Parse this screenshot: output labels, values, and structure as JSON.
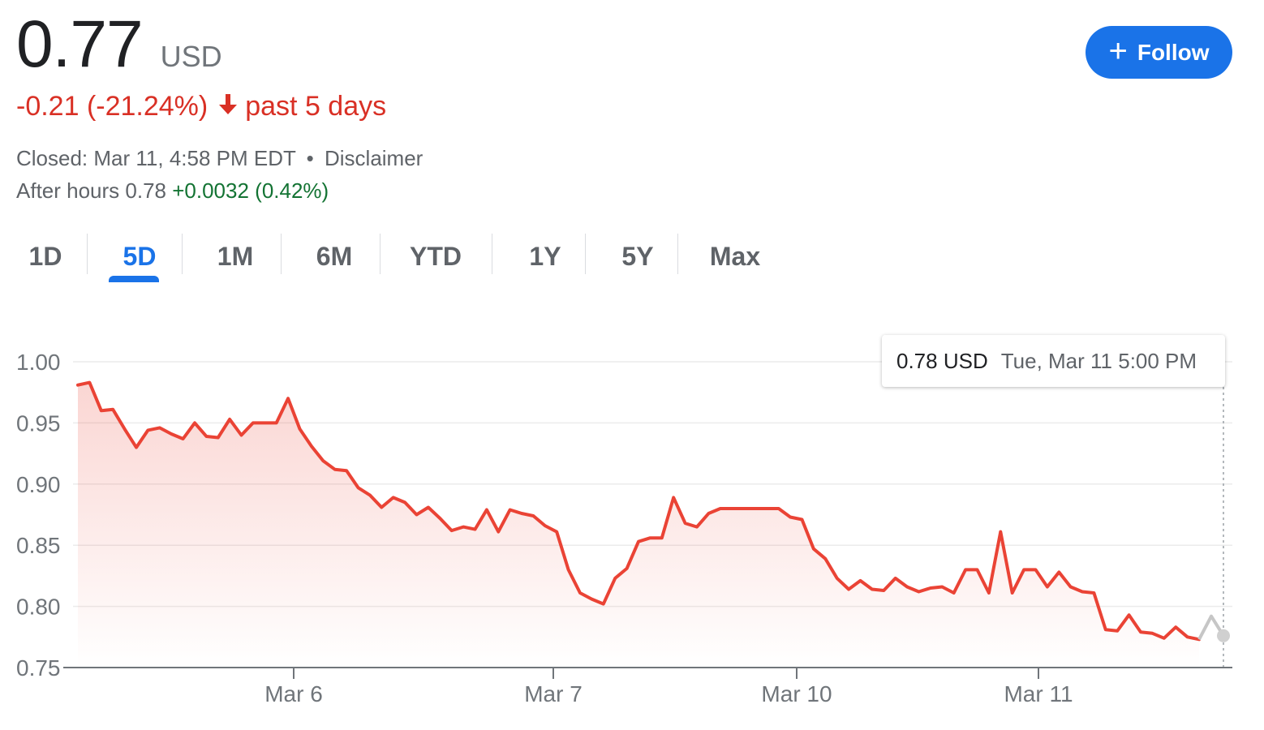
{
  "quote": {
    "price": "0.77",
    "currency": "USD",
    "change": "-0.21 (-21.24%)",
    "change_arrow": "↓",
    "change_period": "past 5 days",
    "closed_text": "Closed: Mar 11, 4:58 PM EDT",
    "separator": "•",
    "disclaimer": "Disclaimer",
    "after_hours_label": "After hours 0.78",
    "after_hours_change": "+0.0032 (0.42%)"
  },
  "follow_button": {
    "icon": "plus-icon",
    "plus": "+",
    "label": "Follow",
    "color": "#1a73e8"
  },
  "tabs": [
    {
      "label": "1D",
      "active": false
    },
    {
      "label": "5D",
      "active": true
    },
    {
      "label": "1M",
      "active": false
    },
    {
      "label": "6M",
      "active": false
    },
    {
      "label": "YTD",
      "active": false
    },
    {
      "label": "1Y",
      "active": false
    },
    {
      "label": "5Y",
      "active": false
    },
    {
      "label": "Max",
      "active": false
    }
  ],
  "tooltip": {
    "value": "0.78 USD",
    "date": "Tue, Mar 11 5:00 PM"
  },
  "colors": {
    "line": "#ea4335",
    "negative": "#d93025",
    "positive": "#137333",
    "after_hours_line": "#c6c6c6"
  },
  "chart_data": {
    "type": "line",
    "ylim": [
      0.75,
      1.0
    ],
    "y_ticks": [
      "1.00",
      "0.95",
      "0.90",
      "0.85",
      "0.80",
      "0.75"
    ],
    "y_tick_values": [
      1.0,
      0.95,
      0.9,
      0.85,
      0.8,
      0.75
    ],
    "x_ticks": [
      "Mar 6",
      "Mar 7",
      "Mar 10",
      "Mar 11"
    ],
    "x_tick_sessions": [
      1,
      2,
      3,
      4
    ],
    "grid": true,
    "sessions": 5,
    "series": [
      {
        "values": [
          0.981,
          0.983,
          0.96,
          0.961,
          0.945,
          0.93,
          0.944,
          0.946,
          0.941,
          0.937,
          0.95,
          0.939,
          0.938,
          0.953,
          0.94,
          0.95,
          0.95,
          0.95,
          0.97,
          0.945,
          0.931,
          0.919,
          0.912,
          0.911,
          0.897,
          0.891,
          0.881,
          0.889,
          0.885,
          0.875,
          0.881,
          0.872,
          0.862,
          0.865,
          0.863,
          0.879,
          0.861,
          0.879,
          0.876,
          0.874,
          0.866,
          0.861,
          0.83,
          0.811,
          0.806,
          0.802,
          0.823,
          0.831,
          0.853,
          0.856,
          0.856,
          0.889,
          0.868,
          0.865,
          0.876,
          0.88,
          0.88,
          0.88,
          0.88,
          0.88,
          0.88,
          0.873,
          0.871,
          0.847,
          0.839,
          0.823,
          0.814,
          0.821,
          0.814,
          0.813,
          0.823,
          0.816,
          0.812,
          0.815,
          0.816,
          0.811,
          0.83,
          0.83,
          0.811,
          0.861,
          0.811,
          0.83,
          0.83,
          0.816,
          0.828,
          0.816,
          0.812,
          0.811,
          0.781,
          0.78,
          0.793,
          0.779,
          0.778,
          0.774,
          0.783,
          0.775,
          0.773
        ]
      },
      {
        "name": "After hours",
        "values": [
          0.773,
          0.792,
          0.776
        ]
      }
    ]
  }
}
